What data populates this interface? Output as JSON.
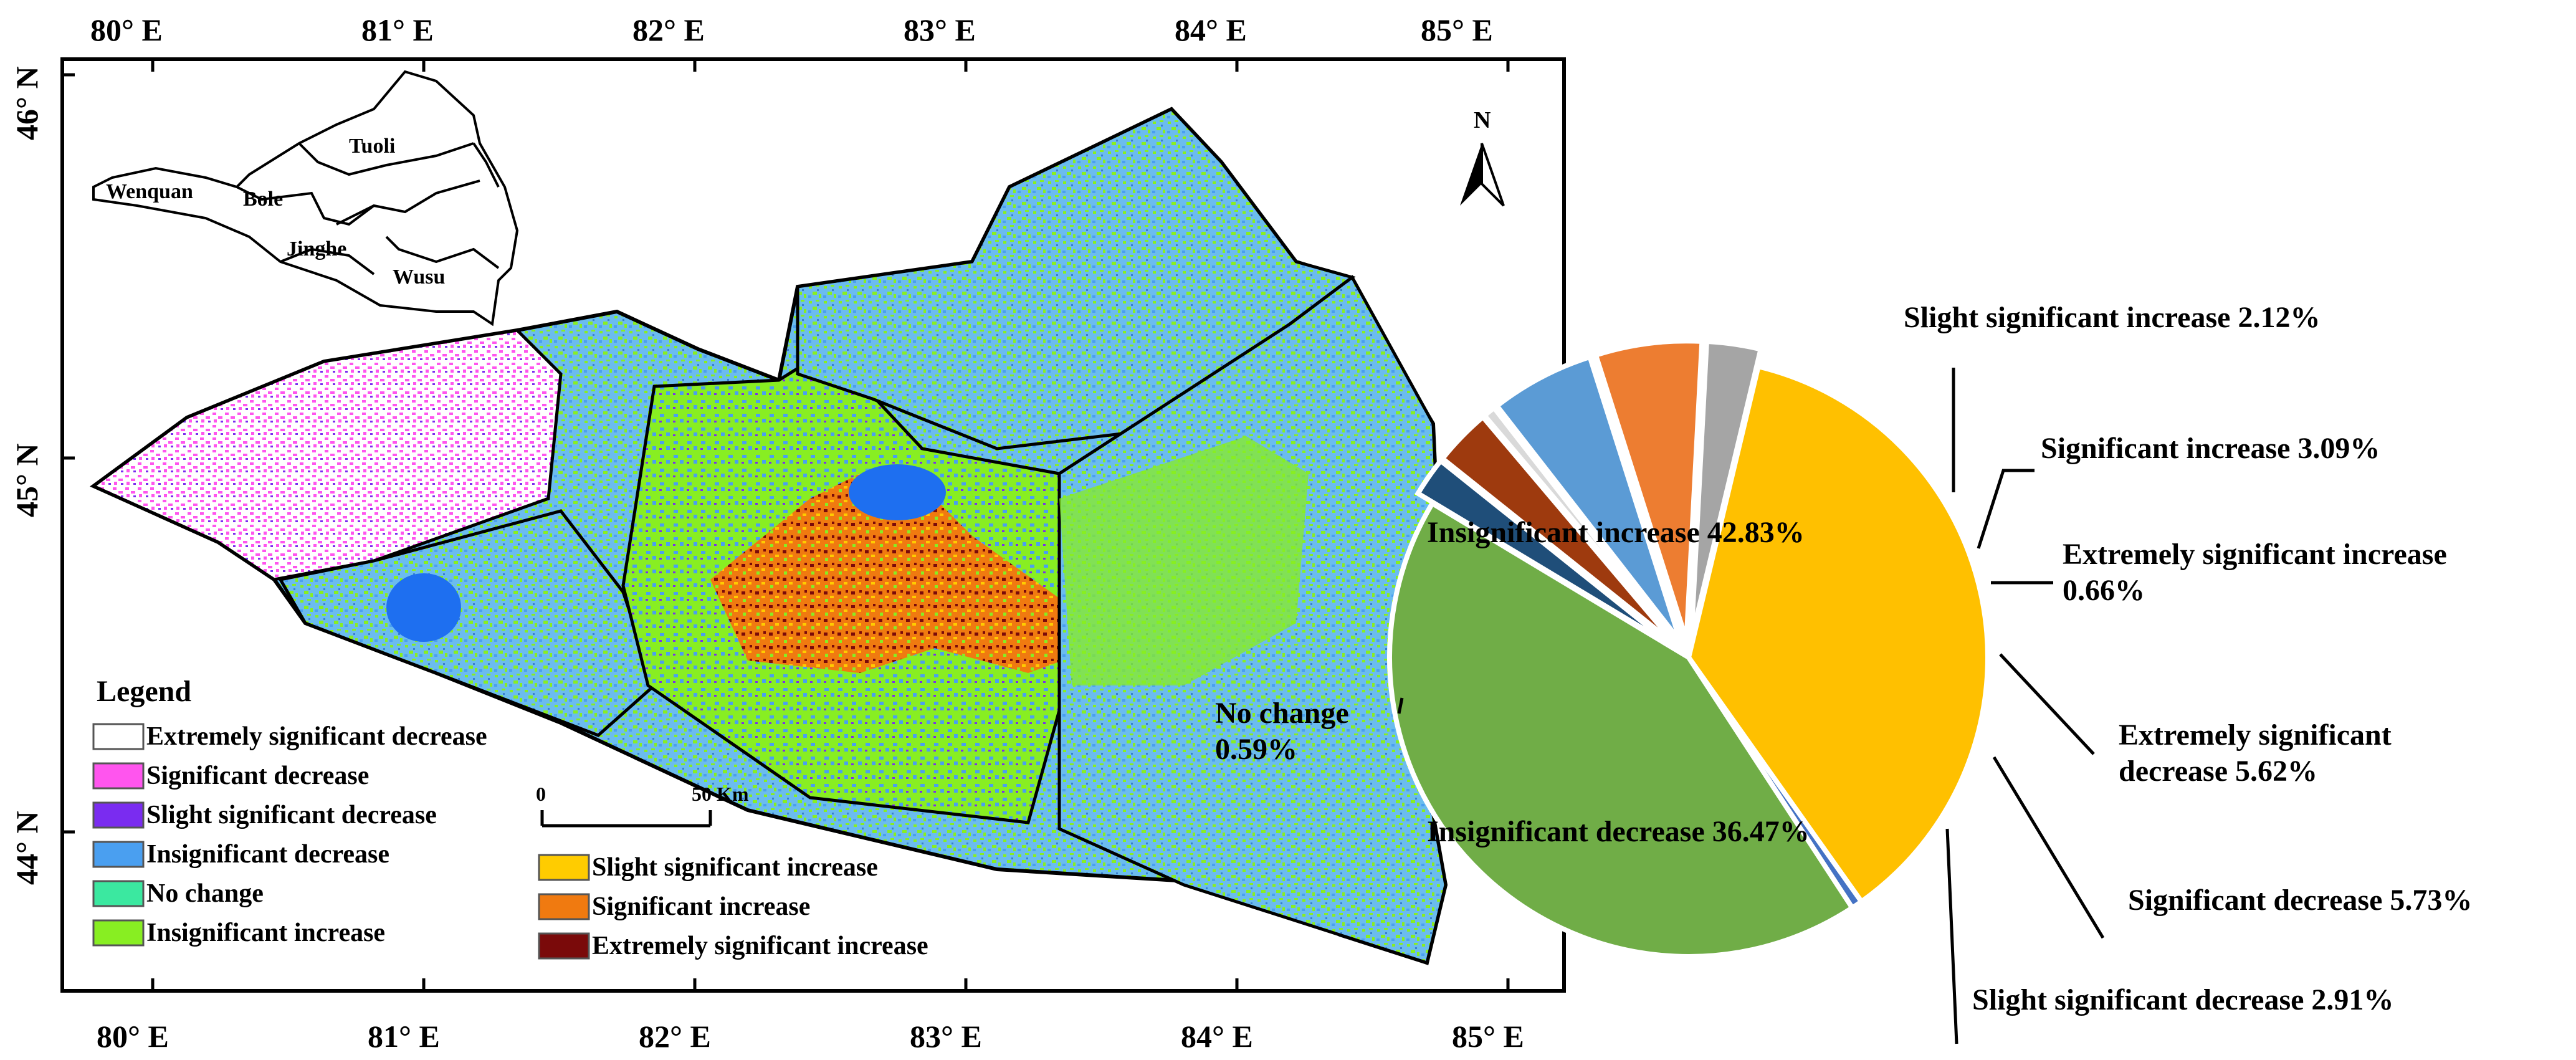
{
  "map": {
    "x_ticks": [
      "80° E",
      "81° E",
      "82° E",
      "83° E",
      "84° E",
      "85° E"
    ],
    "y_ticks": [
      "46° N",
      "45° N",
      "44° N"
    ],
    "north_label": "N",
    "scale_bar": {
      "start": "0",
      "end": "50 Km"
    },
    "inset_regions": [
      "Tuoli",
      "Wenquan",
      "Bole",
      "Jinghe",
      "Wusu"
    ]
  },
  "legend": {
    "title": "Legend",
    "items": [
      {
        "label": "Extremely significant decrease",
        "color": "#ffffff"
      },
      {
        "label": "Significant decrease",
        "color": "#ff55ee"
      },
      {
        "label": "Slight significant decrease",
        "color": "#7a2cf0"
      },
      {
        "label": "Insignificant decrease",
        "color": "#4a9ff0"
      },
      {
        "label": "No change",
        "color": "#3be8a0"
      },
      {
        "label": "Insignificant increase",
        "color": "#88ee22"
      },
      {
        "label": "Slight significant increase",
        "color": "#ffcc00"
      },
      {
        "label": "Significant increase",
        "color": "#f07a10"
      },
      {
        "label": "Extremely significant increase",
        "color": "#7a0a0a"
      }
    ]
  },
  "chart_data": {
    "type": "pie",
    "slices": [
      {
        "name": "Slight significant increase",
        "value": 2.12,
        "color": "#1f4e79",
        "label_lines": [
          "Slight significant increase 2.12%"
        ]
      },
      {
        "name": "Significant increase",
        "value": 3.09,
        "color": "#9e3a0e",
        "label_lines": [
          "Significant increase 3.09%"
        ]
      },
      {
        "name": "Extremely significant increase",
        "value": 0.66,
        "color": "#d9d9d9",
        "label_lines": [
          "Extremely significant increase",
          "0.66%"
        ]
      },
      {
        "name": "Extremely significant decrease",
        "value": 5.62,
        "color": "#5b9bd5",
        "label_lines": [
          "Extremely significant",
          "decrease 5.62%"
        ]
      },
      {
        "name": "Significant decrease",
        "value": 5.73,
        "color": "#ed7d31",
        "label_lines": [
          "Significant decrease 5.73%"
        ]
      },
      {
        "name": "Slight significant decrease",
        "value": 2.91,
        "color": "#a5a5a5",
        "label_lines": [
          "Slight significant decrease 2.91%"
        ]
      },
      {
        "name": "Insignificant decrease",
        "value": 36.47,
        "color": "#ffc000",
        "label_lines": [
          "Insignificant decrease 36.47%"
        ]
      },
      {
        "name": "No change",
        "value": 0.59,
        "color": "#4472c4",
        "label_lines": [
          "No change",
          "0.59%"
        ]
      },
      {
        "name": "Insignificant increase",
        "value": 42.83,
        "color": "#70ad47",
        "label_lines": [
          "Insignificant increase 42.83%"
        ]
      }
    ]
  }
}
